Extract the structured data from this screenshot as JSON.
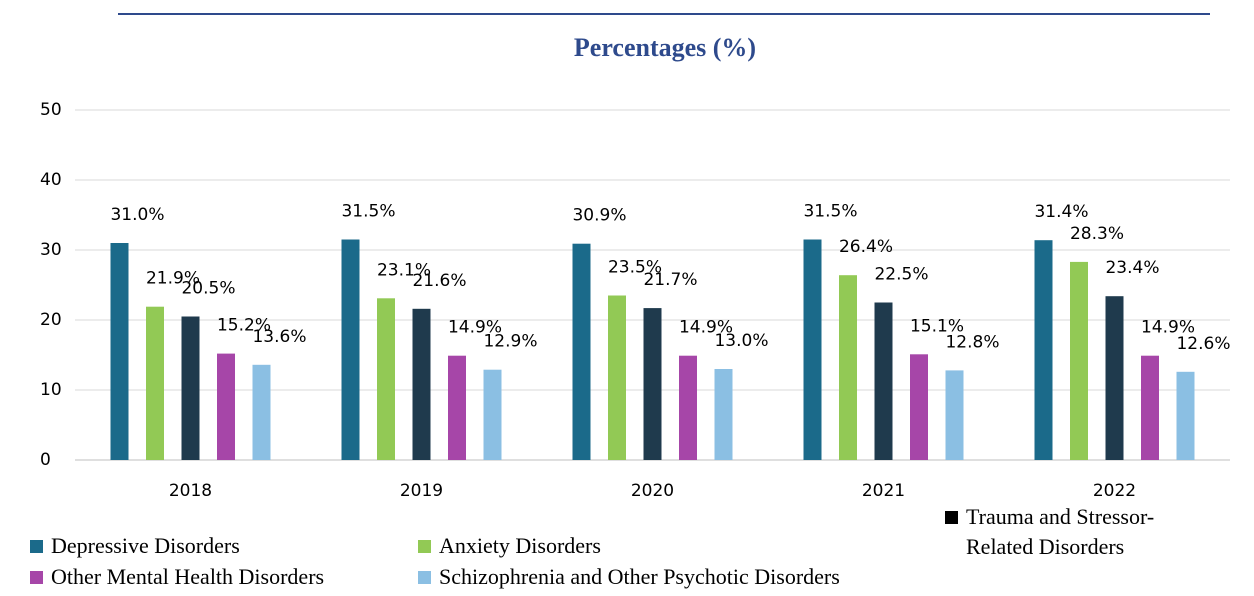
{
  "chart_data": {
    "type": "bar",
    "title": "Percentages (%)",
    "categories": [
      "2018",
      "2019",
      "2020",
      "2021",
      "2022"
    ],
    "series": [
      {
        "name": "Depressive Disorders",
        "color": "#1b6a8a",
        "values": [
          31.0,
          31.5,
          30.9,
          31.5,
          31.4
        ],
        "value_labels": [
          "31.0%",
          "31.5%",
          "30.9%",
          "31.5%",
          "31.4%"
        ]
      },
      {
        "name": "Anxiety Disorders",
        "color": "#92c955",
        "values": [
          21.9,
          23.1,
          23.5,
          26.4,
          28.3
        ],
        "value_labels": [
          "21.9%",
          "23.1%",
          "23.5%",
          "26.4%",
          "28.3%"
        ]
      },
      {
        "name": "Trauma and Stressor-Related Disorders",
        "color": "#1f3a4d",
        "values": [
          20.5,
          21.6,
          21.7,
          22.5,
          23.4
        ],
        "value_labels": [
          "20.5%",
          "21.6%",
          "21.7%",
          "22.5%",
          "23.4%"
        ]
      },
      {
        "name": "Other Mental Health Disorders",
        "color": "#a646a8",
        "values": [
          15.2,
          14.9,
          14.9,
          15.1,
          14.9
        ],
        "value_labels": [
          "15.2%",
          "14.9%",
          "14.9%",
          "15.1%",
          "14.9%"
        ]
      },
      {
        "name": "Schizophrenia and Other Psychotic Disorders",
        "color": "#8bbfe3",
        "values": [
          13.6,
          12.9,
          13.0,
          12.8,
          12.6
        ],
        "value_labels": [
          "13.6%",
          "12.9%",
          "13.0%",
          "12.8%",
          "12.6%"
        ]
      }
    ],
    "ylim": [
      0,
      50
    ],
    "yticks": [
      0,
      10,
      20,
      30,
      40,
      50
    ],
    "grid": true
  }
}
